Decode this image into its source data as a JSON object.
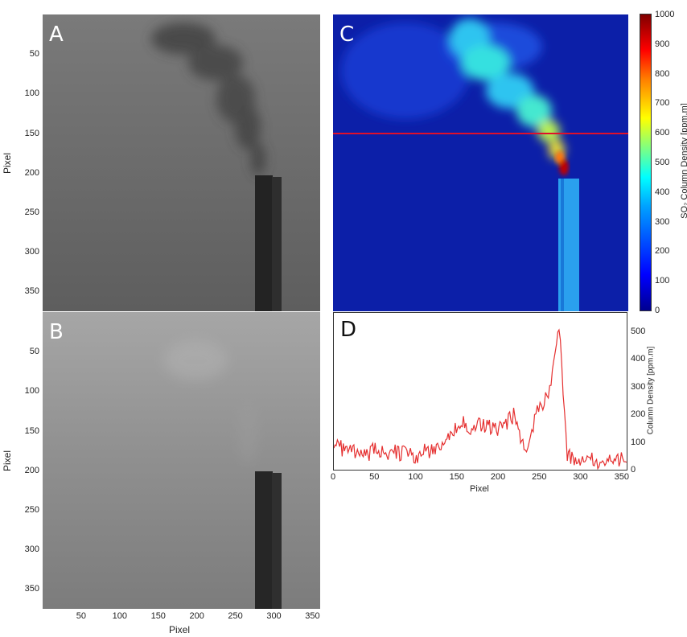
{
  "chart_data": [
    {
      "panel": "A",
      "type": "heatmap",
      "ylabel": "Pixel",
      "yticks": [
        50,
        100,
        150,
        200,
        250,
        300,
        350
      ],
      "ylim": [
        0,
        375
      ],
      "xlim": [
        0,
        360
      ],
      "colormap": "grayscale"
    },
    {
      "panel": "B",
      "type": "heatmap",
      "xlabel": "Pixel",
      "ylabel": "Pixel",
      "xticks": [
        50,
        100,
        150,
        200,
        250,
        300,
        350
      ],
      "yticks": [
        50,
        100,
        150,
        200,
        250,
        300,
        350
      ],
      "xlim": [
        0,
        360
      ],
      "ylim": [
        0,
        375
      ],
      "colormap": "grayscale"
    },
    {
      "panel": "C",
      "type": "heatmap",
      "colorbar_label": "SO₂ Column Density [ppm.m]",
      "colorbar_ticks": [
        0,
        100,
        200,
        300,
        400,
        500,
        600,
        700,
        800,
        900,
        1000
      ],
      "colorbar_range": [
        0,
        1000
      ],
      "colormap": "jet",
      "profile_line_row": 150,
      "profile_line_color": "#e0102a"
    },
    {
      "panel": "D",
      "type": "line",
      "xlabel": "Pixel",
      "ylabel": "Column Density [ppm.m]",
      "xticks": [
        0,
        50,
        100,
        150,
        200,
        250,
        300,
        350
      ],
      "yticks": [
        0,
        100,
        200,
        300,
        400,
        500
      ],
      "xlim": [
        0,
        355
      ],
      "ylim": [
        0,
        560
      ],
      "series": [
        {
          "color": "#e53030",
          "x": [
            0,
            10,
            20,
            30,
            40,
            50,
            60,
            70,
            80,
            90,
            100,
            110,
            120,
            130,
            140,
            150,
            160,
            170,
            180,
            190,
            200,
            210,
            218,
            225,
            232,
            240,
            245,
            250,
            255,
            260,
            265,
            270,
            273,
            278,
            283,
            290,
            300,
            310,
            320,
            330,
            340,
            350,
            355
          ],
          "y": [
            100,
            80,
            70,
            70,
            60,
            75,
            65,
            70,
            60,
            70,
            50,
            70,
            70,
            100,
            120,
            160,
            170,
            150,
            170,
            160,
            150,
            170,
            200,
            140,
            80,
            120,
            200,
            260,
            240,
            280,
            350,
            460,
            520,
            300,
            60,
            40,
            30,
            40,
            30,
            40,
            30,
            40,
            30
          ]
        }
      ]
    }
  ]
}
